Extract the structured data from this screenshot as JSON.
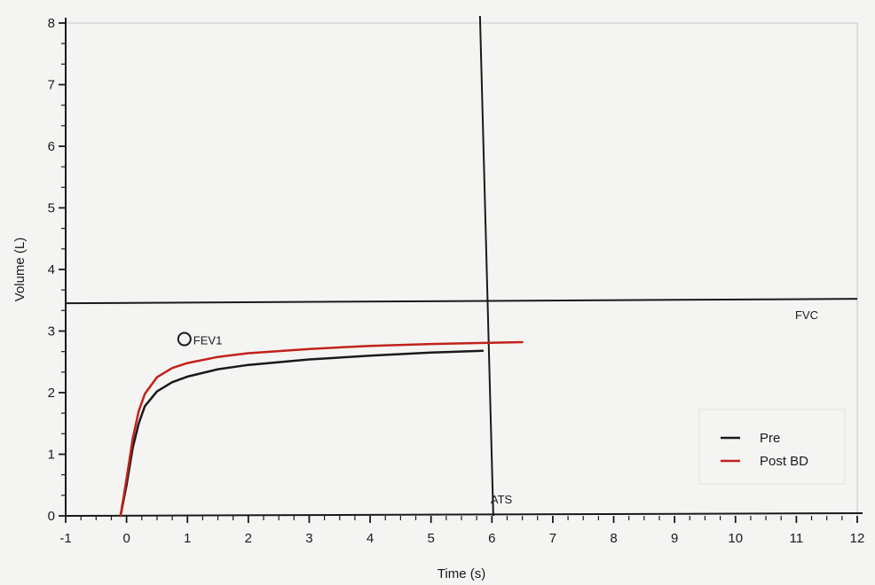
{
  "chart_data": {
    "type": "line",
    "xlabel": "Time (s)",
    "ylabel": "Volume (L)",
    "xlim": [
      -1,
      12
    ],
    "ylim": [
      0,
      8
    ],
    "x_ticks": [
      -1,
      0,
      1,
      2,
      3,
      4,
      5,
      6,
      7,
      8,
      9,
      10,
      11,
      12
    ],
    "y_ticks": [
      0,
      1,
      2,
      3,
      4,
      5,
      6,
      7,
      8
    ],
    "grid": false,
    "legend_position": "bottom-right",
    "series": [
      {
        "name": "Pre",
        "color": "#1a1a1a",
        "points": [
          [
            -0.1,
            0
          ],
          [
            0,
            0.5
          ],
          [
            0.1,
            1.1
          ],
          [
            0.2,
            1.5
          ],
          [
            0.3,
            1.78
          ],
          [
            0.5,
            2.02
          ],
          [
            0.75,
            2.17
          ],
          [
            1,
            2.26
          ],
          [
            1.5,
            2.38
          ],
          [
            2,
            2.45
          ],
          [
            3,
            2.54
          ],
          [
            4,
            2.6
          ],
          [
            5,
            2.65
          ],
          [
            5.85,
            2.68
          ]
        ]
      },
      {
        "name": "Post BD",
        "color": "#c0221b",
        "points": [
          [
            -0.1,
            0
          ],
          [
            0,
            0.6
          ],
          [
            0.1,
            1.25
          ],
          [
            0.2,
            1.7
          ],
          [
            0.3,
            1.98
          ],
          [
            0.5,
            2.25
          ],
          [
            0.75,
            2.4
          ],
          [
            1,
            2.48
          ],
          [
            1.5,
            2.58
          ],
          [
            2,
            2.64
          ],
          [
            3,
            2.71
          ],
          [
            4,
            2.76
          ],
          [
            5,
            2.79
          ],
          [
            6.5,
            2.82
          ]
        ]
      }
    ],
    "reference_lines": [
      {
        "orientation": "horizontal",
        "label": "FVC",
        "y": 3.48
      },
      {
        "orientation": "vertical",
        "label": "ATS",
        "x": 5.95
      }
    ],
    "markers": [
      {
        "label": "FEV1",
        "x": 0.95,
        "y": 2.87,
        "shape": "circle"
      }
    ]
  }
}
